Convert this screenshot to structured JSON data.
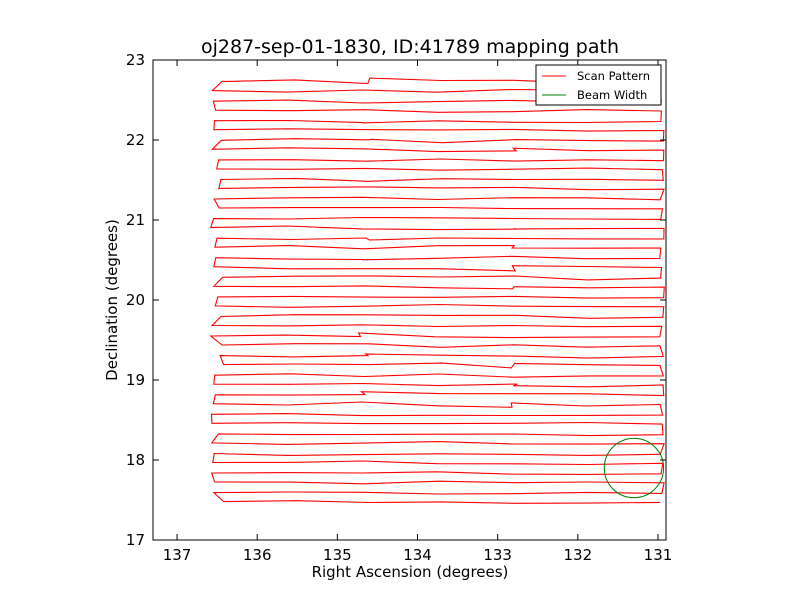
{
  "chart_data": {
    "type": "line",
    "title": "oj287-sep-01-1830, ID:41789 mapping path",
    "xlabel": "Right Ascension (degrees)",
    "ylabel": "Declination (degrees)",
    "xlim": [
      137.3,
      130.9
    ],
    "ylim": [
      17,
      23
    ],
    "x_ticks": [
      137,
      136,
      135,
      134,
      133,
      132,
      131
    ],
    "y_ticks": [
      17,
      18,
      19,
      20,
      21,
      22,
      23
    ],
    "grid": false,
    "legend_position": "top-right",
    "series": [
      {
        "name": "Scan Pattern",
        "color": "#ff0000",
        "pattern": "raster",
        "ra_range": [
          136.5,
          130.95
        ],
        "dec_range": [
          17.47,
          22.73
        ],
        "row_count": 44
      },
      {
        "name": "Beam Width",
        "color": "#008000",
        "shape": "circle",
        "center_ra": 131.3,
        "center_dec": 17.9,
        "radius_deg": 0.37
      }
    ]
  }
}
